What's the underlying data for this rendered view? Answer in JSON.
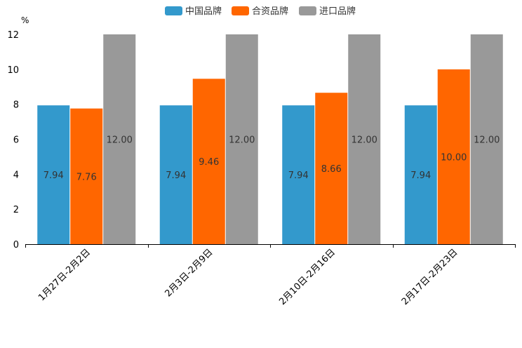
{
  "chart_data": {
    "type": "bar",
    "unit_label": "%",
    "categories": [
      "1月27日-2月2日",
      "2月3日-2月9日",
      "2月10日-2月16日",
      "2月17日-2月23日"
    ],
    "series": [
      {
        "name": "中国品牌",
        "color": "#3399cc",
        "values": [
          7.94,
          7.94,
          7.94,
          7.94
        ],
        "labels": [
          "7.94",
          "7.94",
          "7.94",
          "7.94"
        ]
      },
      {
        "name": "合资品牌",
        "color": "#ff6600",
        "values": [
          7.76,
          9.46,
          8.66,
          10.0
        ],
        "labels": [
          "7.76",
          "9.46",
          "8.66",
          "10.00"
        ]
      },
      {
        "name": "进口品牌",
        "color": "#999999",
        "values": [
          12.0,
          12.0,
          12.0,
          12.0
        ],
        "labels": [
          "12.00",
          "12.00",
          "12.00",
          "12.00"
        ]
      }
    ],
    "ylim": [
      0,
      12
    ],
    "yticks": [
      "0",
      "2",
      "4",
      "6",
      "8",
      "10",
      "12"
    ],
    "legend_position": "top-center",
    "grid": false
  }
}
